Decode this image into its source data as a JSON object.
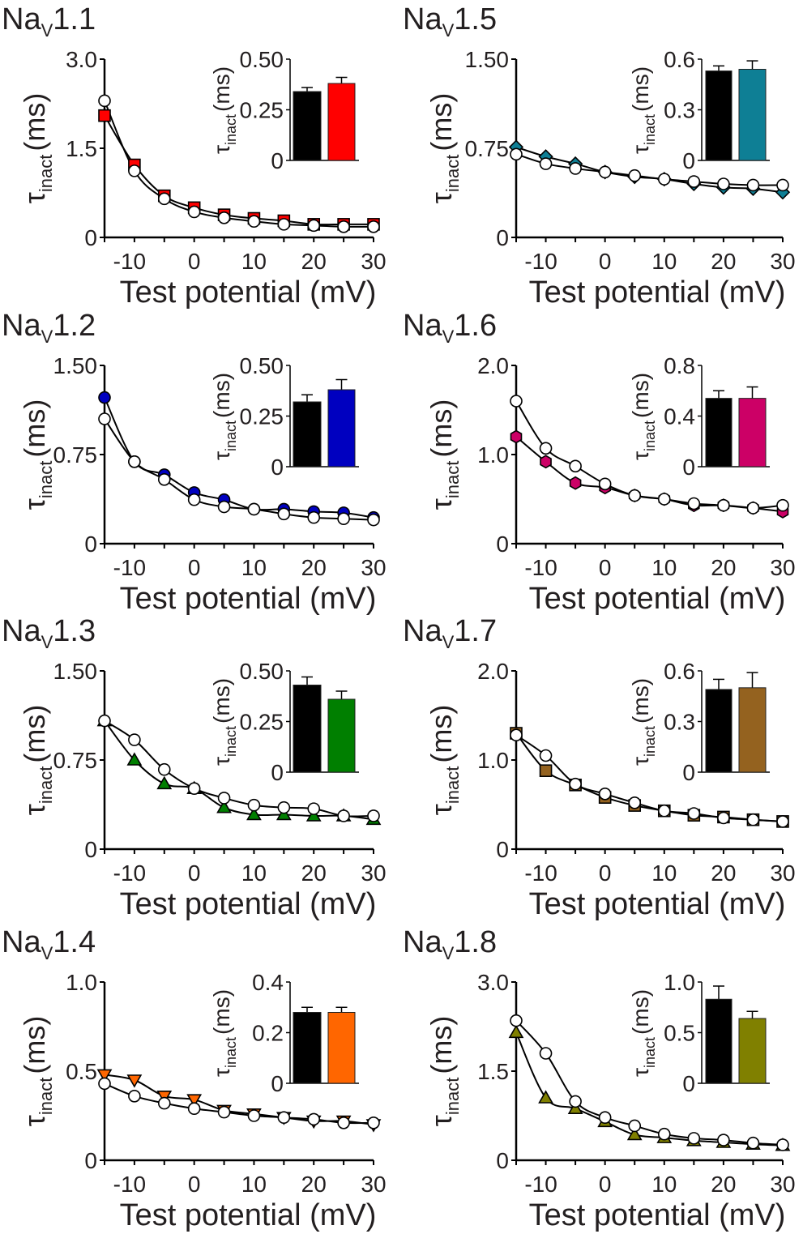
{
  "labels": {
    "title_main": "Na",
    "title_sub": "V",
    "ylabel_main": "τ",
    "ylabel_sub": "inact",
    "ylabel_unit": "(ms)",
    "xlabel": "Test potential (mV)"
  },
  "chart_data": [
    {
      "type": "line",
      "title_num": "1.1",
      "column": "left",
      "row": 0,
      "color": "#ff0000",
      "marker": "square",
      "x": [
        -15,
        -10,
        -5,
        0,
        5,
        10,
        15,
        20,
        25,
        30
      ],
      "xticks": [
        "-10",
        "0",
        "10",
        "20",
        "30"
      ],
      "xtick_values": [
        -10,
        0,
        10,
        20,
        30
      ],
      "xlim": [
        -15,
        30
      ],
      "ylim": [
        0,
        3.0
      ],
      "yticks": [
        "0",
        "1.5",
        "3.0"
      ],
      "ytick_values": [
        0,
        1.5,
        3.0
      ],
      "series": [
        {
          "values": [
            2.3,
            1.12,
            0.65,
            0.43,
            0.33,
            0.27,
            0.22,
            0.2,
            0.18,
            0.18
          ],
          "color": "#ffffff"
        },
        {
          "values": [
            2.05,
            1.22,
            0.7,
            0.5,
            0.38,
            0.32,
            0.28,
            0.22,
            0.22,
            0.22
          ],
          "color": "#ff0000"
        }
      ],
      "inset": {
        "type": "bar",
        "ylim": [
          0,
          0.5
        ],
        "yticks": [
          "0",
          "0.25",
          "0.50"
        ],
        "ytick_values": [
          0,
          0.25,
          0.5
        ],
        "values": [
          0.34,
          0.38
        ],
        "errors": [
          0.02,
          0.03
        ],
        "colors": [
          "#000000",
          "#ff0000"
        ]
      }
    },
    {
      "type": "line",
      "title_num": "1.5",
      "column": "right",
      "row": 0,
      "color": "#0e7f95",
      "marker": "diamond",
      "x": [
        -15,
        -10,
        -5,
        0,
        5,
        10,
        15,
        20,
        25,
        30
      ],
      "xticks": [
        "-10",
        "0",
        "10",
        "20",
        "30"
      ],
      "xtick_values": [
        -10,
        0,
        10,
        20,
        30
      ],
      "xlim": [
        -15,
        30
      ],
      "ylim": [
        0,
        1.5
      ],
      "yticks": [
        "0",
        "0.75",
        "1.50"
      ],
      "ytick_values": [
        0,
        0.75,
        1.5
      ],
      "series": [
        {
          "values": [
            0.7,
            0.62,
            0.58,
            0.55,
            0.52,
            0.49,
            0.47,
            0.45,
            0.44,
            0.44
          ],
          "color": "#ffffff"
        },
        {
          "values": [
            0.76,
            0.68,
            0.62,
            0.55,
            0.51,
            0.49,
            0.45,
            0.42,
            0.41,
            0.38
          ],
          "color": "#0e7f95"
        }
      ],
      "inset": {
        "type": "bar",
        "ylim": [
          0,
          0.6
        ],
        "yticks": [
          "0",
          "0.3",
          "0.6"
        ],
        "ytick_values": [
          0,
          0.3,
          0.6
        ],
        "values": [
          0.53,
          0.54
        ],
        "errors": [
          0.03,
          0.05
        ],
        "colors": [
          "#000000",
          "#0e7f95"
        ]
      }
    },
    {
      "type": "line",
      "title_num": "1.2",
      "column": "left",
      "row": 1,
      "color": "#0000c0",
      "marker": "circle",
      "x": [
        -15,
        -10,
        -5,
        0,
        5,
        10,
        15,
        20,
        25,
        30
      ],
      "xticks": [
        "-10",
        "0",
        "10",
        "20",
        "30"
      ],
      "xtick_values": [
        -10,
        0,
        10,
        20,
        30
      ],
      "xlim": [
        -15,
        30
      ],
      "ylim": [
        0,
        1.5
      ],
      "yticks": [
        "0",
        "0.75",
        "1.50"
      ],
      "ytick_values": [
        0,
        0.75,
        1.5
      ],
      "series": [
        {
          "values": [
            1.05,
            0.69,
            0.54,
            0.37,
            0.31,
            0.29,
            0.25,
            0.22,
            0.21,
            0.2
          ],
          "color": "#ffffff"
        },
        {
          "values": [
            1.23,
            0.69,
            0.58,
            0.43,
            0.37,
            0.29,
            0.29,
            0.27,
            0.26,
            0.22
          ],
          "color": "#0000c0"
        }
      ],
      "inset": {
        "type": "bar",
        "ylim": [
          0,
          0.5
        ],
        "yticks": [
          "0",
          "0.25",
          "0.50"
        ],
        "ytick_values": [
          0,
          0.25,
          0.5
        ],
        "values": [
          0.32,
          0.38
        ],
        "errors": [
          0.035,
          0.05
        ],
        "colors": [
          "#000000",
          "#0000c0"
        ]
      }
    },
    {
      "type": "line",
      "title_num": "1.6",
      "column": "right",
      "row": 1,
      "color": "#cc0066",
      "marker": "hexagon",
      "x": [
        -15,
        -10,
        -5,
        0,
        5,
        10,
        15,
        20,
        25,
        30
      ],
      "xticks": [
        "-10",
        "0",
        "10",
        "20",
        "30"
      ],
      "xtick_values": [
        -10,
        0,
        10,
        20,
        30
      ],
      "xlim": [
        -15,
        30
      ],
      "ylim": [
        0,
        2.0
      ],
      "yticks": [
        "0",
        "1.0",
        "2.0"
      ],
      "ytick_values": [
        0,
        1.0,
        2.0
      ],
      "series": [
        {
          "values": [
            1.6,
            1.07,
            0.87,
            0.67,
            0.54,
            0.5,
            0.45,
            0.43,
            0.4,
            0.43
          ],
          "color": "#ffffff"
        },
        {
          "values": [
            1.2,
            0.92,
            0.68,
            0.63,
            0.54,
            0.5,
            0.43,
            0.43,
            0.4,
            0.36
          ],
          "color": "#cc0066"
        }
      ],
      "inset": {
        "type": "bar",
        "ylim": [
          0,
          0.8
        ],
        "yticks": [
          "0",
          "0.4",
          "0.8"
        ],
        "ytick_values": [
          0,
          0.4,
          0.8
        ],
        "values": [
          0.54,
          0.54
        ],
        "errors": [
          0.06,
          0.09
        ],
        "colors": [
          "#000000",
          "#cc0066"
        ]
      }
    },
    {
      "type": "line",
      "title_num": "1.3",
      "column": "left",
      "row": 2,
      "color": "#007f00",
      "marker": "triangle-up",
      "x": [
        -15,
        -10,
        -5,
        0,
        5,
        10,
        15,
        20,
        25,
        30
      ],
      "xticks": [
        "-10",
        "0",
        "10",
        "20",
        "30"
      ],
      "xtick_values": [
        -10,
        0,
        10,
        20,
        30
      ],
      "xlim": [
        -15,
        30
      ],
      "ylim": [
        0,
        1.5
      ],
      "yticks": [
        "0",
        "0.75",
        "1.50"
      ],
      "ytick_values": [
        0,
        0.75,
        1.5
      ],
      "series": [
        {
          "values": [
            1.08,
            0.92,
            0.67,
            0.51,
            0.43,
            0.37,
            0.35,
            0.34,
            0.28,
            0.28
          ],
          "color": "#ffffff"
        },
        {
          "values": [
            1.08,
            0.75,
            0.55,
            0.51,
            0.35,
            0.29,
            0.29,
            0.28,
            0.28,
            0.25
          ],
          "color": "#007f00"
        }
      ],
      "inset": {
        "type": "bar",
        "ylim": [
          0,
          0.5
        ],
        "yticks": [
          "0",
          "0.25",
          "0.50"
        ],
        "ytick_values": [
          0,
          0.25,
          0.5
        ],
        "values": [
          0.43,
          0.36
        ],
        "errors": [
          0.04,
          0.04
        ],
        "colors": [
          "#000000",
          "#007f00"
        ]
      }
    },
    {
      "type": "line",
      "title_num": "1.7",
      "column": "right",
      "row": 2,
      "color": "#94621f",
      "marker": "square",
      "x": [
        -15,
        -10,
        -5,
        0,
        5,
        10,
        15,
        20,
        25,
        30
      ],
      "xticks": [
        "-10",
        "0",
        "10",
        "20",
        "30"
      ],
      "xtick_values": [
        -10,
        0,
        10,
        20,
        30
      ],
      "xlim": [
        -15,
        30
      ],
      "ylim": [
        0,
        2.0
      ],
      "yticks": [
        "0",
        "1.0",
        "2.0"
      ],
      "ytick_values": [
        0,
        1.0,
        2.0
      ],
      "series": [
        {
          "values": [
            1.28,
            1.05,
            0.73,
            0.62,
            0.52,
            0.43,
            0.4,
            0.35,
            0.33,
            0.31
          ],
          "color": "#ffffff"
        },
        {
          "values": [
            1.3,
            0.88,
            0.72,
            0.58,
            0.49,
            0.43,
            0.38,
            0.36,
            0.33,
            0.31
          ],
          "color": "#94621f"
        }
      ],
      "inset": {
        "type": "bar",
        "ylim": [
          0,
          0.6
        ],
        "yticks": [
          "0",
          "0.3",
          "0.6"
        ],
        "ytick_values": [
          0,
          0.3,
          0.6
        ],
        "values": [
          0.49,
          0.5
        ],
        "errors": [
          0.06,
          0.09
        ],
        "colors": [
          "#000000",
          "#94621f"
        ]
      }
    },
    {
      "type": "line",
      "title_num": "1.4",
      "column": "left",
      "row": 3,
      "color": "#ff6600",
      "marker": "triangle-down",
      "x": [
        -15,
        -10,
        -5,
        0,
        5,
        10,
        15,
        20,
        25,
        30
      ],
      "xticks": [
        "-10",
        "0",
        "10",
        "20",
        "30"
      ],
      "xtick_values": [
        -10,
        0,
        10,
        20,
        30
      ],
      "xlim": [
        -15,
        30
      ],
      "ylim": [
        0,
        1.0
      ],
      "yticks": [
        "0",
        "0.5",
        "1.0"
      ],
      "ytick_values": [
        0,
        0.5,
        1.0
      ],
      "series": [
        {
          "values": [
            0.43,
            0.36,
            0.32,
            0.29,
            0.27,
            0.25,
            0.24,
            0.23,
            0.21,
            0.21
          ],
          "color": "#ffffff"
        },
        {
          "values": [
            0.48,
            0.45,
            0.36,
            0.34,
            0.28,
            0.26,
            0.24,
            0.22,
            0.22,
            0.2
          ],
          "color": "#ff6600"
        }
      ],
      "inset": {
        "type": "bar",
        "ylim": [
          0,
          0.4
        ],
        "yticks": [
          "0",
          "0.2",
          "0.4"
        ],
        "ytick_values": [
          0,
          0.2,
          0.4
        ],
        "values": [
          0.28,
          0.28
        ],
        "errors": [
          0.02,
          0.02
        ],
        "colors": [
          "#000000",
          "#ff6600"
        ]
      }
    },
    {
      "type": "line",
      "title_num": "1.8",
      "column": "right",
      "row": 3,
      "color": "#808000",
      "marker": "triangle-up",
      "x": [
        -15,
        -10,
        -5,
        0,
        5,
        10,
        15,
        20,
        25,
        30
      ],
      "xticks": [
        "-10",
        "0",
        "10",
        "20",
        "30"
      ],
      "xtick_values": [
        -10,
        0,
        10,
        20,
        30
      ],
      "xlim": [
        -15,
        30
      ],
      "ylim": [
        0,
        3.0
      ],
      "yticks": [
        "0",
        "1.5",
        "3.0"
      ],
      "ytick_values": [
        0,
        1.5,
        3.0
      ],
      "series": [
        {
          "values": [
            2.35,
            1.8,
            0.99,
            0.72,
            0.58,
            0.44,
            0.37,
            0.34,
            0.29,
            0.26
          ],
          "color": "#ffffff"
        },
        {
          "values": [
            2.15,
            1.05,
            0.87,
            0.65,
            0.43,
            0.38,
            0.33,
            0.3,
            0.27,
            0.25
          ],
          "color": "#808000"
        }
      ],
      "inset": {
        "type": "bar",
        "ylim": [
          0,
          1.0
        ],
        "yticks": [
          "0",
          "0.5",
          "1.0"
        ],
        "ytick_values": [
          0,
          0.5,
          1.0
        ],
        "values": [
          0.83,
          0.64
        ],
        "errors": [
          0.13,
          0.07
        ],
        "colors": [
          "#000000",
          "#808000"
        ]
      }
    }
  ]
}
